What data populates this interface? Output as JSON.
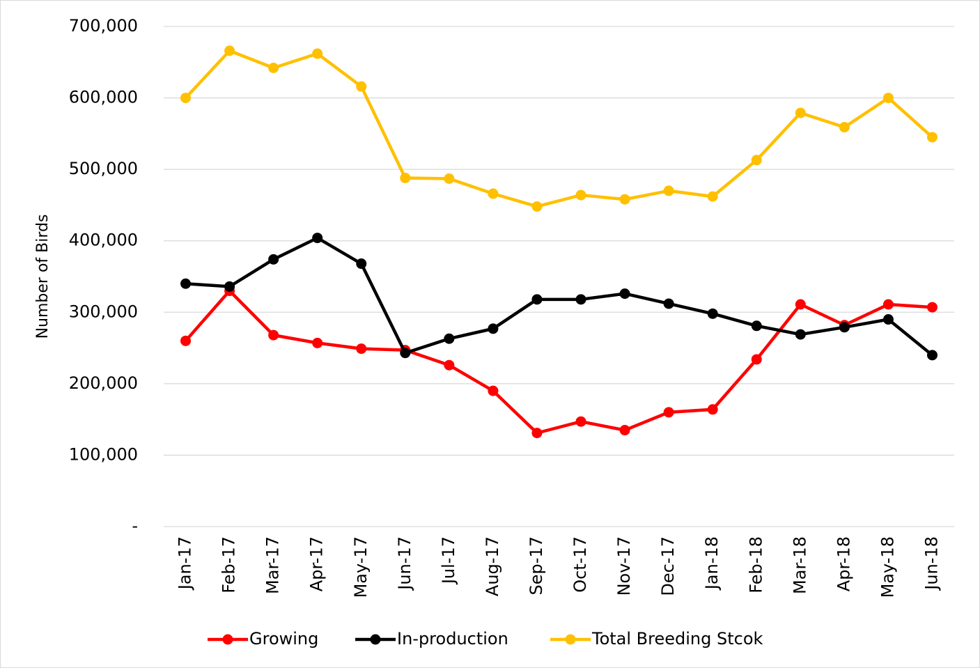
{
  "chart_data": {
    "type": "line",
    "y_label": "Number of Birds",
    "categories": [
      "Jan-17",
      "Feb-17",
      "Mar-17",
      "Apr-17",
      "May-17",
      "Jun-17",
      "Jul-17",
      "Aug-17",
      "Sep-17",
      "Oct-17",
      "Nov-17",
      "Dec-17",
      "Jan-18",
      "Feb-18",
      "Mar-18",
      "Apr-18",
      "May-18",
      "Jun-18"
    ],
    "series": [
      {
        "name": "Growing",
        "color": "#ff0000",
        "values": [
          260000,
          330000,
          268000,
          257000,
          249000,
          247000,
          226000,
          190000,
          131000,
          147000,
          135000,
          160000,
          164000,
          234000,
          311000,
          282000,
          311000,
          307000
        ]
      },
      {
        "name": "In-production",
        "color": "#000000",
        "values": [
          340000,
          336000,
          374000,
          404000,
          368000,
          243000,
          263000,
          277000,
          318000,
          318000,
          326000,
          312000,
          298000,
          281000,
          269000,
          279000,
          290000,
          240000
        ]
      },
      {
        "name": "Total Breeding Stcok",
        "color": "#ffc000",
        "values": [
          600000,
          666000,
          642000,
          662000,
          616000,
          488000,
          487000,
          466000,
          448000,
          464000,
          458000,
          470000,
          462000,
          513000,
          579000,
          559000,
          600000,
          545000
        ]
      }
    ],
    "ylim": [
      0,
      700000
    ],
    "yticks": [
      {
        "value": 0,
        "label": "-"
      },
      {
        "value": 100000,
        "label": "100,000"
      },
      {
        "value": 200000,
        "label": "200,000"
      },
      {
        "value": 300000,
        "label": "300,000"
      },
      {
        "value": 400000,
        "label": "400,000"
      },
      {
        "value": 500000,
        "label": "500,000"
      },
      {
        "value": 600000,
        "label": "600,000"
      },
      {
        "value": 700000,
        "label": "700,000"
      }
    ],
    "grid": true,
    "legend": "bottom"
  }
}
